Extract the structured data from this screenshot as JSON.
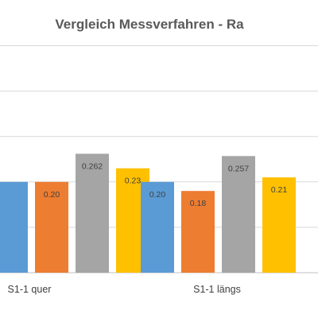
{
  "chart_data": {
    "type": "bar",
    "title": "Vergleich Messverfahren - Ra",
    "categories": [
      "S1-1 quer",
      "S1-1 längs"
    ],
    "series": [
      {
        "values": [
          0.2,
          0.2
        ],
        "labels": [
          "",
          "0.20"
        ],
        "color": "#5b9bd5"
      },
      {
        "values": [
          0.2,
          0.18
        ],
        "labels": [
          "0.20",
          "0.18"
        ],
        "color": "#ed7d31"
      },
      {
        "values": [
          0.262,
          0.257
        ],
        "labels": [
          "0.262",
          "0.257"
        ],
        "color": "#a5a5a5"
      },
      {
        "values": [
          0.23,
          0.21
        ],
        "labels": [
          "0.23",
          "0.21"
        ],
        "color": "#ffc000"
      }
    ],
    "ylim": [
      0,
      0.5
    ],
    "grid": true,
    "legend": "none"
  }
}
